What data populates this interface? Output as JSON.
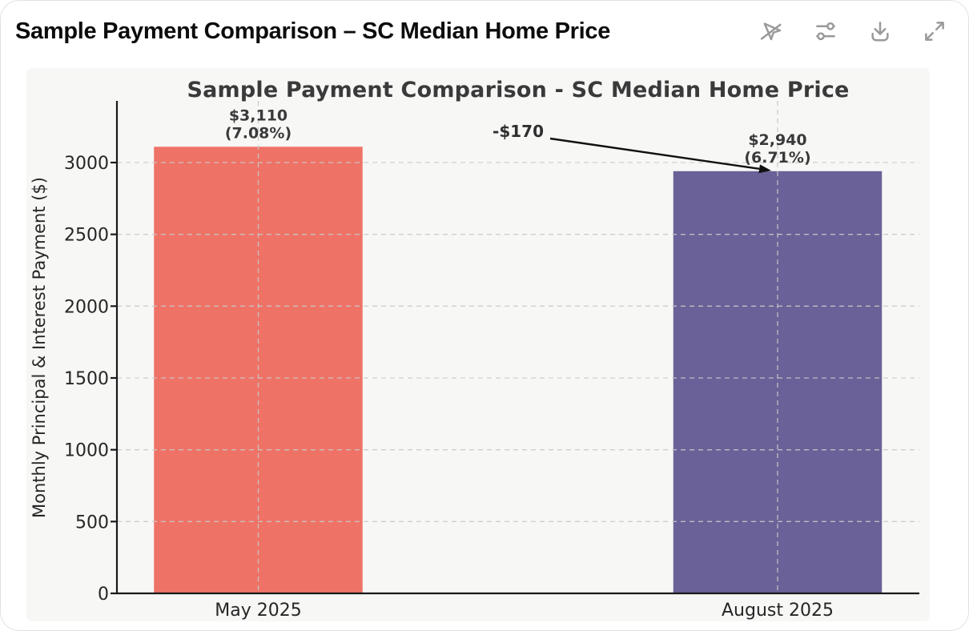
{
  "window": {
    "title": "Sample Payment Comparison – SC Median Home Price"
  },
  "toolbar": {
    "icons": [
      "pointer-off-icon",
      "sliders-icon",
      "download-icon",
      "expand-icon"
    ]
  },
  "chart_data": {
    "type": "bar",
    "title": "Sample Payment Comparison - SC Median Home Price",
    "ylabel": "Monthly Principal & Interest Payment ($)",
    "xlabel": "",
    "categories": [
      "May 2025",
      "August 2025"
    ],
    "values": [
      3110,
      2940
    ],
    "bar_labels": [
      [
        "$3,110",
        "(7.08%)"
      ],
      [
        "$2,940",
        "(6.71%)"
      ]
    ],
    "bar_colors": [
      "#ee7366",
      "#6a6198"
    ],
    "annotation": {
      "text": "-$170"
    },
    "yticks": [
      0,
      500,
      1000,
      1500,
      2000,
      2500,
      3000
    ],
    "ylim": [
      0,
      3430
    ],
    "grid": {
      "dashed": true,
      "color": "#c9c9c9",
      "drawn_over_bars": true
    },
    "plot_background": "#f7f7f6",
    "legend": "none"
  }
}
